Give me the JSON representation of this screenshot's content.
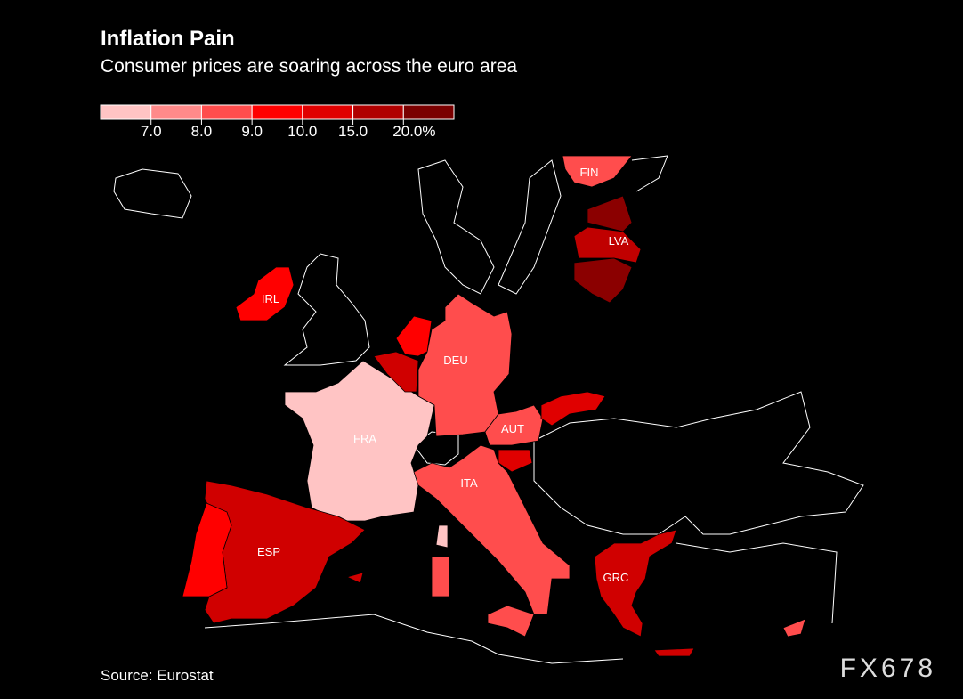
{
  "header": {
    "title": "Inflation Pain",
    "subtitle": "Consumer prices are soaring across the euro area"
  },
  "legend": {
    "colors": [
      "#ffc4c4",
      "#ff8a8a",
      "#ff4d4d",
      "#ff0000",
      "#e00000",
      "#b00000",
      "#7a0000"
    ],
    "ticks": [
      {
        "value": 7,
        "label": "7.0"
      },
      {
        "value": 8,
        "label": "8.0"
      },
      {
        "value": 9,
        "label": "9.0"
      },
      {
        "value": 10,
        "label": "10.0"
      },
      {
        "value": 15,
        "label": "15.0"
      },
      {
        "value": 20,
        "label": "20.0%"
      }
    ]
  },
  "regions": [
    {
      "label": "FRA",
      "color": "#ffc4c4"
    },
    {
      "label": "DEU",
      "color": "#ff4d4d"
    },
    {
      "label": null,
      "color": "#ff0000"
    },
    {
      "label": null,
      "color": "#d00000"
    },
    {
      "label": "AUT",
      "color": "#ff4d4d"
    },
    {
      "label": null,
      "color": "#e00000"
    },
    {
      "label": null,
      "color": "#e00000"
    },
    {
      "label": "ITA",
      "color": "#ff4d4d"
    },
    {
      "label": "ESP",
      "color": "#d00000"
    },
    {
      "label": null,
      "color": "#ff0000"
    },
    {
      "label": "IRL",
      "color": "#ff0000"
    },
    {
      "label": "FIN",
      "color": "#ff4d4d"
    },
    {
      "label": null,
      "color": "#8b0000"
    },
    {
      "label": "LVA",
      "color": "#c00000"
    },
    {
      "label": null,
      "color": "#8b0000"
    },
    {
      "label": "GRC",
      "color": "#d00000"
    },
    {
      "label": null,
      "color": "#ff4d4d"
    }
  ],
  "footer": {
    "source": "Source: Eurostat",
    "watermark": "FX678"
  }
}
